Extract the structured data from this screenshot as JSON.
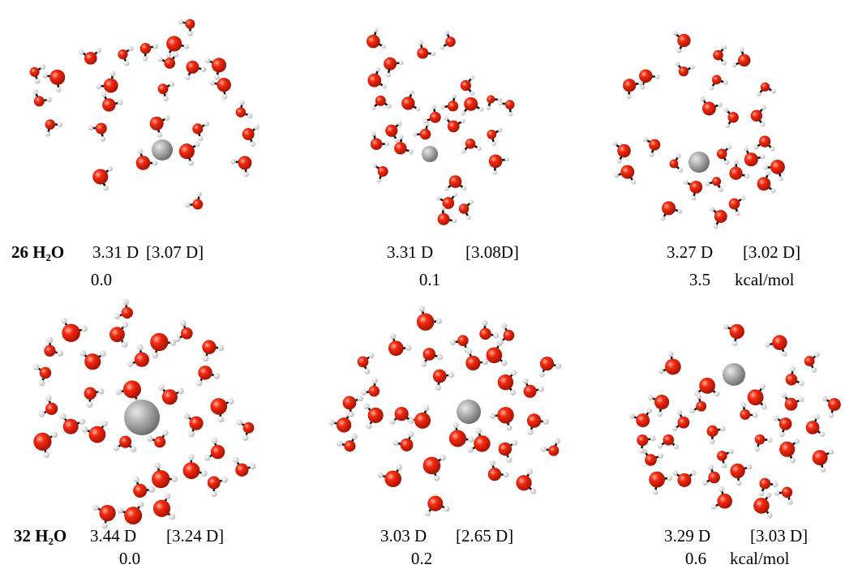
{
  "panels": [
    {
      "label": "26 H₂O",
      "dipole": "3.31 D",
      "reference": "[3.07 D]",
      "energy": "0.0"
    },
    {
      "dipole": "3.31 D",
      "reference": "[3.08D]",
      "energy": "0.1"
    },
    {
      "dipole": "3.27 D",
      "reference": "[3.02 D]",
      "energy": "3.5",
      "unit": "kcal/mol"
    },
    {
      "label": "32 H₂O",
      "dipole": "3.44 D",
      "reference": "[3.24 D]",
      "energy": "0.0"
    },
    {
      "dipole": "3.03 D",
      "reference": "[2.65 D]",
      "energy": "0.2"
    },
    {
      "dipole": "3.29 D",
      "reference": "[3.03 D]",
      "energy": "0.6",
      "unit": "kcal/mol"
    }
  ]
}
